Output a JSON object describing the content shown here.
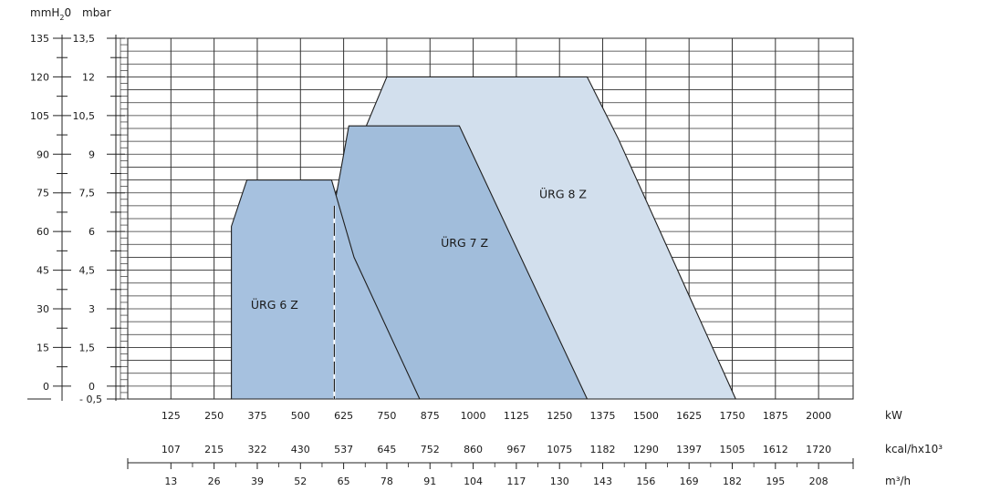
{
  "chart_data": {
    "type": "area",
    "title": "",
    "y_axes": [
      {
        "unit": "mmH2O",
        "unit_display": {
          "main": "mmH",
          "sub": "2",
          "tail": "0"
        },
        "ticks": [
          "135",
          "120",
          "105",
          "90",
          "75",
          "60",
          "45",
          "30",
          "15",
          "0"
        ]
      },
      {
        "unit": "mbar",
        "ticks": [
          "13,5",
          "12",
          "10,5",
          "9",
          "7,5",
          "6",
          "4,5",
          "3",
          "1,5",
          "0",
          "- 0,5"
        ]
      }
    ],
    "ylim_mbar": [
      -0.5,
      13.5
    ],
    "x_axes": [
      {
        "unit": "kW",
        "ticks": [
          "125",
          "250",
          "375",
          "500",
          "625",
          "750",
          "875",
          "1000",
          "1125",
          "1250",
          "1375",
          "1500",
          "1625",
          "1750",
          "1875",
          "2000"
        ]
      },
      {
        "unit": "kcal/hx10³",
        "ticks": [
          "107",
          "215",
          "322",
          "430",
          "537",
          "645",
          "752",
          "860",
          "967",
          "1075",
          "1182",
          "1290",
          "1397",
          "1505",
          "1612",
          "1720"
        ]
      },
      {
        "unit": "m³/h",
        "ticks": [
          "13",
          "26",
          "39",
          "52",
          "65",
          "78",
          "91",
          "104",
          "117",
          "130",
          "143",
          "156",
          "169",
          "182",
          "195",
          "208"
        ]
      }
    ],
    "xlim_kw": [
      0,
      2100
    ],
    "grid": true,
    "series": [
      {
        "name": "ÜRG 8 Z",
        "color": "#d2dfed",
        "points_kw_mbar": [
          [
            598,
            7.4
          ],
          [
            650,
            8.8
          ],
          [
            750,
            12.0
          ],
          [
            1330,
            12.0
          ],
          [
            1420,
            9.6
          ],
          [
            1760,
            -0.5
          ],
          [
            598,
            -0.5
          ]
        ]
      },
      {
        "name": "ÜRG 7 Z",
        "color": "#a1bddb",
        "points_kw_mbar": [
          [
            598,
            7.0
          ],
          [
            640,
            10.1
          ],
          [
            960,
            10.1
          ],
          [
            1330,
            -0.5
          ],
          [
            598,
            -0.5
          ]
        ]
      },
      {
        "name": "ÜRG 6 Z",
        "color": "#a6c1df",
        "points_kw_mbar": [
          [
            300,
            6.2
          ],
          [
            345,
            8.0
          ],
          [
            590,
            8.0
          ],
          [
            655,
            5.0
          ],
          [
            845,
            -0.5
          ],
          [
            300,
            -0.5
          ]
        ]
      }
    ],
    "overlap_color": "#6c9ac8",
    "label_positions_kw_mbar": {
      "ÜRG 8 Z": [
        1260,
        7.3
      ],
      "ÜRG 7 Z": [
        975,
        5.4
      ],
      "ÜRG 6 Z": [
        425,
        3.0
      ]
    }
  }
}
